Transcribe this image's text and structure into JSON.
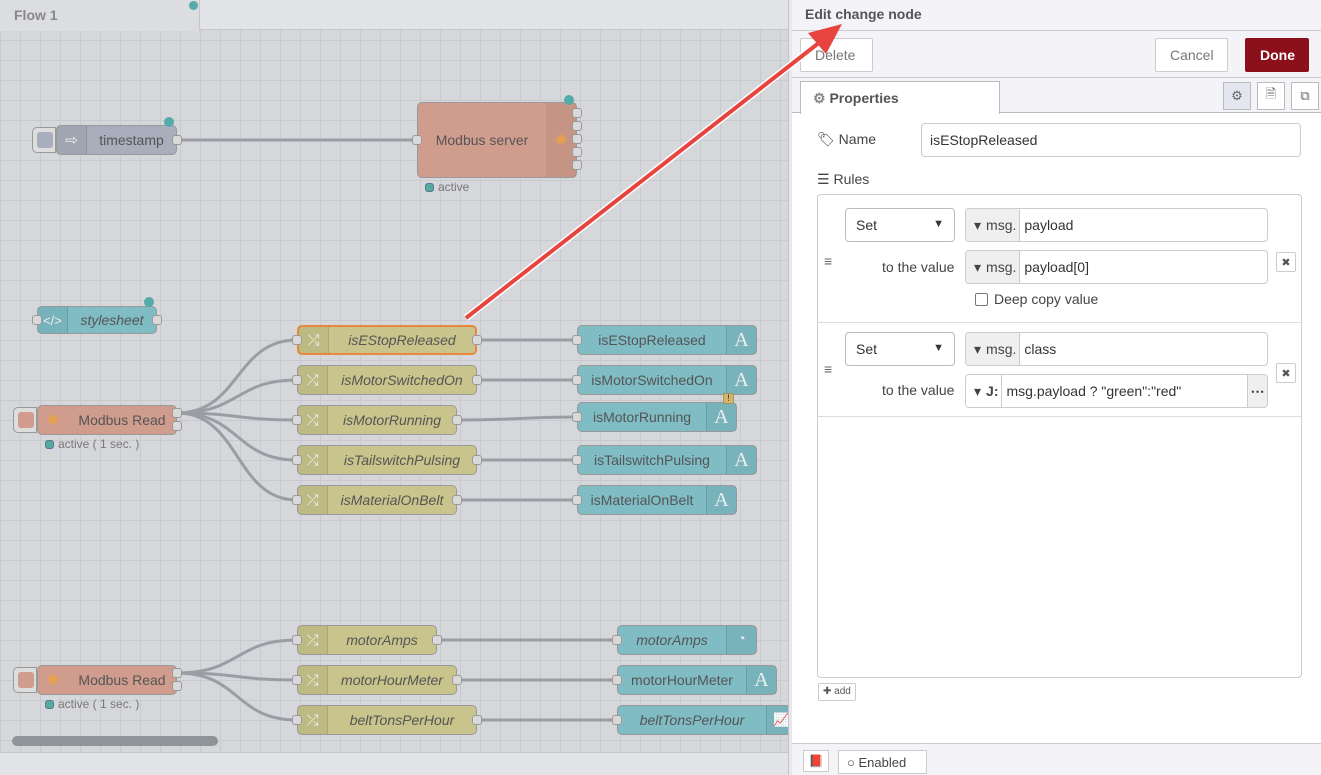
{
  "workspace": {
    "tab_label": "Flow 1",
    "nodes": {
      "timestamp": "timestamp",
      "modbus_server": "Modbus server",
      "modbus_server_status": "active",
      "stylesheet": "stylesheet",
      "modbus_read_1": "Modbus Read",
      "modbus_read_1_status": "active ( 1 sec. )",
      "modbus_read_2": "Modbus Read",
      "modbus_read_2_status": "active ( 1 sec. )",
      "change_nodes": [
        "isEStopReleased",
        "isMotorSwitchedOn",
        "isMotorRunning",
        "isTailswitchPulsing",
        "isMaterialOnBelt",
        "motorAmps",
        "motorHourMeter",
        "beltTonsPerHour"
      ],
      "ui_nodes": [
        "isEStopReleased",
        "isMotorSwitchedOn",
        "isMotorRunning",
        "isTailswitchPulsing",
        "isMaterialOnBelt",
        "motorAmps",
        "motorHourMeter",
        "beltTonsPerHour"
      ]
    }
  },
  "panel": {
    "title": "Edit change node",
    "delete_label": "Delete",
    "cancel_label": "Cancel",
    "done_label": "Done",
    "tab_properties": "Properties",
    "name_label": "Name",
    "name_value": "isEStopReleased",
    "rules_label": "Rules",
    "rules": [
      {
        "action": "Set",
        "target_type": "msg.",
        "target": "payload",
        "to_label": "to the value",
        "value_type": "msg.",
        "value": "payload[0]",
        "deep_copy_label": "Deep copy value",
        "deep_copy": false
      },
      {
        "action": "Set",
        "target_type": "msg.",
        "target": "class",
        "to_label": "to the value",
        "value_type": "J:",
        "value": "msg.payload ? \"green\":\"red\""
      }
    ],
    "add_label": "add",
    "enabled_label": "Enabled"
  },
  "colors": {
    "done": "#8c101c",
    "annotation_arrow": "#e8443f",
    "change_node": "#c9c48c",
    "dashboard_node": "#7fbcc4",
    "modbus_node": "#d09c8d"
  }
}
